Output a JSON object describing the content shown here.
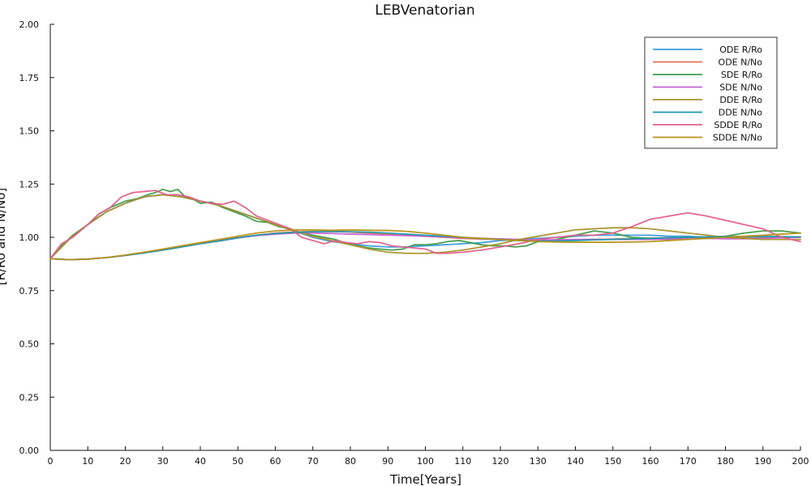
{
  "chart_data": {
    "type": "line",
    "title": "LEBVenatorian",
    "xlabel": "Time[Years]",
    "ylabel": "[R/Ro and N/No]",
    "xlim": [
      0,
      200
    ],
    "ylim": [
      0,
      2
    ],
    "xticks": [
      0,
      10,
      20,
      30,
      40,
      50,
      60,
      70,
      80,
      90,
      100,
      110,
      120,
      130,
      140,
      150,
      160,
      170,
      180,
      190,
      200
    ],
    "yticks": [
      0.0,
      0.25,
      0.5,
      0.75,
      1.0,
      1.25,
      1.5,
      1.75,
      2.0
    ],
    "ytick_labels": [
      "0.00",
      "0.25",
      "0.50",
      "0.75",
      "1.00",
      "1.25",
      "1.50",
      "1.75",
      "2.00"
    ],
    "legend_position": "top-right",
    "grid": false,
    "series": [
      {
        "name": "ODE R/Ro",
        "color": "#3a9bdc",
        "x": [
          0,
          5,
          10,
          15,
          20,
          25,
          30,
          35,
          40,
          45,
          50,
          55,
          60,
          65,
          70,
          75,
          80,
          85,
          90,
          95,
          100,
          105,
          110,
          115,
          120,
          125,
          130,
          135,
          140,
          145,
          150,
          155,
          160,
          165,
          170,
          175,
          180,
          185,
          190,
          195,
          200
        ],
        "values": [
          0.9,
          0.99,
          1.06,
          1.12,
          1.16,
          1.19,
          1.2,
          1.19,
          1.17,
          1.15,
          1.12,
          1.09,
          1.06,
          1.03,
          1.0,
          0.98,
          0.97,
          0.96,
          0.955,
          0.955,
          0.96,
          0.965,
          0.97,
          0.975,
          0.985,
          0.99,
          0.995,
          1.0,
          1.005,
          1.01,
          1.01,
          1.01,
          1.01,
          1.005,
          1.005,
          1.0,
          1.0,
          1.0,
          1.0,
          1.0,
          1.0
        ]
      },
      {
        "name": "ODE N/No",
        "color": "#e8705a",
        "x": [
          0,
          5,
          10,
          15,
          20,
          25,
          30,
          35,
          40,
          45,
          50,
          55,
          60,
          65,
          70,
          75,
          80,
          85,
          90,
          95,
          100,
          105,
          110,
          115,
          120,
          125,
          130,
          135,
          140,
          145,
          150,
          155,
          160,
          165,
          170,
          175,
          180,
          185,
          190,
          195,
          200
        ],
        "values": [
          0.9,
          0.895,
          0.898,
          0.905,
          0.915,
          0.928,
          0.943,
          0.958,
          0.972,
          0.985,
          0.998,
          1.01,
          1.02,
          1.025,
          1.028,
          1.028,
          1.025,
          1.02,
          1.015,
          1.01,
          1.005,
          1.0,
          0.995,
          0.992,
          0.99,
          0.988,
          0.987,
          0.987,
          0.988,
          0.99,
          0.992,
          0.994,
          0.996,
          0.998,
          1.0,
          1.001,
          1.002,
          1.002,
          1.002,
          1.001,
          1.0
        ]
      },
      {
        "name": "SDE R/Ro",
        "color": "#3f9b47",
        "x": [
          0,
          3,
          6,
          10,
          13,
          16,
          20,
          23,
          26,
          28,
          30,
          32,
          34,
          36,
          38,
          40,
          43,
          46,
          49,
          52,
          55,
          58,
          61,
          64,
          67,
          70,
          73,
          76,
          79,
          82,
          85,
          88,
          91,
          94,
          97,
          100,
          103,
          106,
          109,
          112,
          115,
          118,
          121,
          124,
          127,
          130,
          135,
          140,
          145,
          150,
          155,
          160,
          165,
          170,
          175,
          180,
          185,
          190,
          195,
          200
        ],
        "values": [
          0.9,
          0.96,
          1.01,
          1.06,
          1.11,
          1.14,
          1.17,
          1.18,
          1.2,
          1.21,
          1.225,
          1.215,
          1.225,
          1.19,
          1.18,
          1.16,
          1.165,
          1.14,
          1.12,
          1.1,
          1.075,
          1.07,
          1.05,
          1.04,
          1.02,
          1.01,
          1.0,
          0.99,
          0.97,
          0.96,
          0.95,
          0.945,
          0.94,
          0.945,
          0.965,
          0.965,
          0.97,
          0.98,
          0.985,
          0.975,
          0.965,
          0.96,
          0.96,
          0.955,
          0.96,
          0.98,
          0.99,
          1.01,
          1.03,
          1.02,
          1.0,
          0.995,
          0.99,
          1.0,
          1.0,
          1.005,
          1.02,
          1.03,
          1.03,
          1.02
        ]
      },
      {
        "name": "SDE N/No",
        "color": "#c561d6",
        "x": [
          0,
          5,
          10,
          15,
          20,
          25,
          30,
          35,
          40,
          45,
          50,
          55,
          60,
          65,
          70,
          75,
          80,
          85,
          90,
          95,
          100,
          105,
          110,
          115,
          120,
          125,
          130,
          135,
          140,
          145,
          150,
          155,
          160,
          165,
          170,
          175,
          180,
          185,
          190,
          195,
          200
        ],
        "values": [
          0.9,
          0.895,
          0.898,
          0.905,
          0.915,
          0.927,
          0.94,
          0.955,
          0.97,
          0.983,
          0.997,
          1.008,
          1.015,
          1.02,
          1.02,
          1.018,
          1.015,
          1.013,
          1.01,
          1.008,
          1.005,
          1.002,
          0.998,
          0.995,
          0.993,
          0.99,
          0.988,
          0.988,
          0.99,
          0.99,
          0.99,
          0.99,
          0.99,
          0.992,
          0.995,
          0.995,
          0.993,
          0.993,
          0.995,
          0.998,
          1.0
        ]
      },
      {
        "name": "DDE R/Ro",
        "color": "#a8902a",
        "x": [
          0,
          5,
          10,
          15,
          20,
          25,
          30,
          35,
          40,
          45,
          50,
          55,
          60,
          65,
          70,
          75,
          80,
          85,
          90,
          95,
          100,
          105,
          110,
          115,
          120,
          125,
          130,
          135,
          140,
          145,
          150,
          155,
          160,
          165,
          170,
          175,
          180,
          185,
          190,
          195,
          200
        ],
        "values": [
          0.9,
          0.99,
          1.06,
          1.12,
          1.16,
          1.19,
          1.2,
          1.19,
          1.17,
          1.15,
          1.12,
          1.09,
          1.06,
          1.03,
          1.005,
          0.985,
          0.965,
          0.945,
          0.93,
          0.925,
          0.925,
          0.93,
          0.94,
          0.955,
          0.97,
          0.99,
          1.005,
          1.02,
          1.035,
          1.04,
          1.045,
          1.045,
          1.04,
          1.03,
          1.02,
          1.01,
          1.0,
          0.995,
          0.99,
          0.99,
          0.99
        ]
      },
      {
        "name": "DDE N/No",
        "color": "#1b9aaa",
        "x": [
          0,
          5,
          10,
          15,
          20,
          25,
          30,
          35,
          40,
          45,
          50,
          55,
          60,
          65,
          70,
          75,
          80,
          85,
          90,
          95,
          100,
          105,
          110,
          115,
          120,
          125,
          130,
          135,
          140,
          145,
          150,
          155,
          160,
          165,
          170,
          175,
          180,
          185,
          190,
          195,
          200
        ],
        "values": [
          0.9,
          0.895,
          0.898,
          0.905,
          0.915,
          0.927,
          0.94,
          0.955,
          0.97,
          0.983,
          0.997,
          1.01,
          1.018,
          1.023,
          1.026,
          1.027,
          1.026,
          1.024,
          1.02,
          1.015,
          1.01,
          1.005,
          1.0,
          0.994,
          0.99,
          0.985,
          0.983,
          0.983,
          0.985,
          0.988,
          0.99,
          0.993,
          0.995,
          0.998,
          1.0,
          1.002,
          1.003,
          1.004,
          1.004,
          1.003,
          1.002
        ]
      },
      {
        "name": "SDDE R/Ro",
        "color": "#e0608a",
        "x": [
          0,
          3,
          6,
          10,
          13,
          16,
          19,
          22,
          25,
          28,
          31,
          34,
          37,
          40,
          43,
          46,
          49,
          52,
          55,
          58,
          61,
          64,
          67,
          70,
          73,
          76,
          79,
          82,
          85,
          88,
          91,
          94,
          97,
          100,
          103,
          106,
          110,
          115,
          120,
          125,
          130,
          135,
          140,
          145,
          150,
          155,
          160,
          165,
          170,
          175,
          180,
          185,
          190,
          195,
          200
        ],
        "values": [
          0.9,
          0.97,
          1.0,
          1.06,
          1.11,
          1.14,
          1.19,
          1.21,
          1.215,
          1.22,
          1.2,
          1.2,
          1.19,
          1.17,
          1.16,
          1.155,
          1.17,
          1.14,
          1.1,
          1.08,
          1.06,
          1.04,
          1.0,
          0.985,
          0.97,
          0.985,
          0.975,
          0.97,
          0.98,
          0.975,
          0.96,
          0.955,
          0.95,
          0.945,
          0.925,
          0.925,
          0.93,
          0.94,
          0.955,
          0.97,
          0.99,
          1.0,
          1.01,
          1.01,
          1.02,
          1.05,
          1.085,
          1.1,
          1.115,
          1.1,
          1.08,
          1.06,
          1.04,
          1.0,
          0.98
        ]
      },
      {
        "name": "SDDE N/No",
        "color": "#b8901a",
        "x": [
          0,
          5,
          10,
          15,
          20,
          25,
          30,
          35,
          40,
          45,
          50,
          55,
          60,
          65,
          70,
          75,
          80,
          85,
          90,
          95,
          100,
          105,
          110,
          115,
          120,
          125,
          130,
          135,
          140,
          145,
          150,
          155,
          160,
          165,
          170,
          175,
          180,
          185,
          190,
          195,
          200
        ],
        "values": [
          0.9,
          0.895,
          0.898,
          0.905,
          0.917,
          0.93,
          0.945,
          0.96,
          0.975,
          0.99,
          1.005,
          1.02,
          1.03,
          1.035,
          1.035,
          1.033,
          1.035,
          1.033,
          1.032,
          1.028,
          1.02,
          1.01,
          1.0,
          0.995,
          0.99,
          0.985,
          0.98,
          0.978,
          0.977,
          0.977,
          0.977,
          0.978,
          0.98,
          0.985,
          0.99,
          0.995,
          1.0,
          1.005,
          1.01,
          1.015,
          1.02
        ]
      }
    ]
  }
}
